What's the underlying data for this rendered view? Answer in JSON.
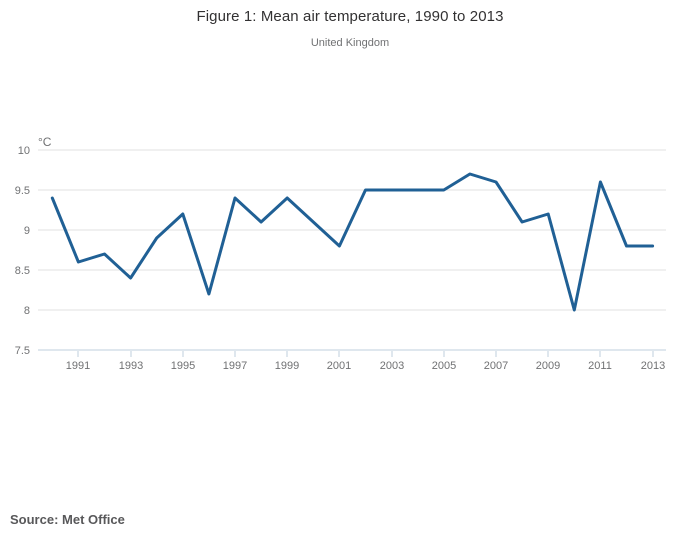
{
  "chart_data": {
    "type": "line",
    "title": "Figure 1: Mean air temperature, 1990 to 2013",
    "subtitle": "United Kingdom",
    "unit": "°C",
    "x": [
      1990,
      1991,
      1992,
      1993,
      1994,
      1995,
      1996,
      1997,
      1998,
      1999,
      2000,
      2001,
      2002,
      2003,
      2004,
      2005,
      2006,
      2007,
      2008,
      2009,
      2010,
      2011,
      2012,
      2013
    ],
    "values": [
      9.4,
      8.6,
      8.7,
      8.4,
      8.9,
      9.2,
      8.2,
      9.4,
      9.1,
      9.4,
      9.1,
      8.8,
      9.5,
      9.5,
      9.5,
      9.5,
      9.7,
      9.6,
      9.1,
      9.2,
      8.0,
      9.6,
      8.8,
      8.8
    ],
    "ylim": [
      7.5,
      10
    ],
    "yticks": [
      10,
      9.5,
      9,
      8.5,
      8,
      7.5
    ],
    "xticks": [
      1991,
      1993,
      1995,
      1997,
      1999,
      2001,
      2003,
      2005,
      2007,
      2009,
      2011,
      2013
    ],
    "grid": "horizontal",
    "legend": "none",
    "line_color": "#206095",
    "grid_color": "#e1e1e1",
    "axis_color": "#bfcfdc",
    "tick_label_color": "#707173",
    "title_color": "#323132"
  },
  "footer": {
    "source": "Source: Met Office"
  }
}
